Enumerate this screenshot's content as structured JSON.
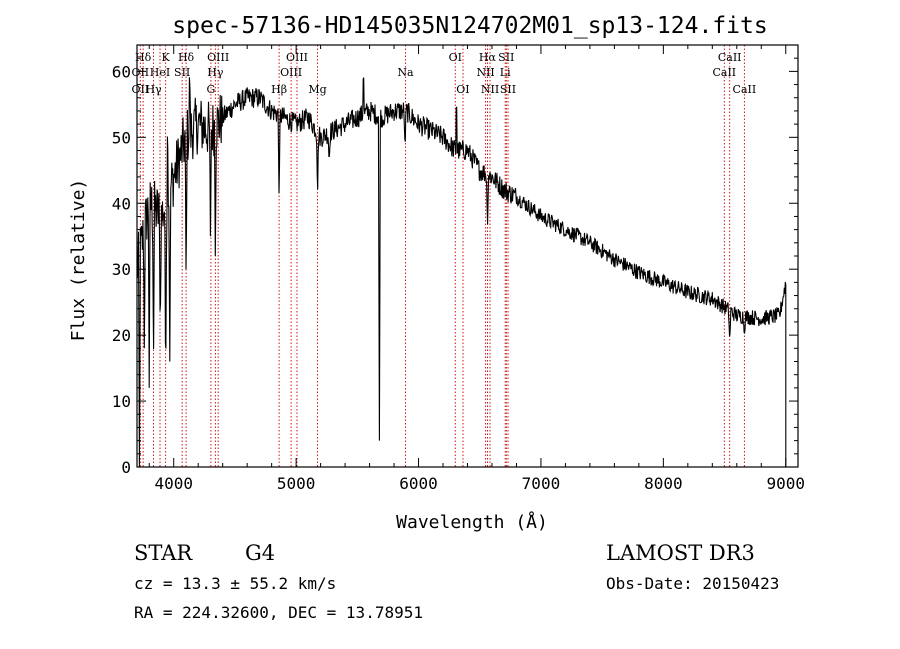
{
  "chart_data": {
    "type": "line",
    "title": "spec-57136-HD145035N124702M01_sp13-124.fits",
    "xlabel": "Wavelength (Å)",
    "ylabel": "Flux (relative)",
    "xlim": [
      3700,
      9100
    ],
    "ylim": [
      0,
      64
    ],
    "xticks": [
      4000,
      5000,
      6000,
      7000,
      8000,
      9000
    ],
    "yticks": [
      0,
      10,
      20,
      30,
      40,
      50,
      60
    ],
    "continuum_anchors": [
      [
        3700,
        30
      ],
      [
        3800,
        40
      ],
      [
        3900,
        38
      ],
      [
        4000,
        44
      ],
      [
        4100,
        50
      ],
      [
        4200,
        52
      ],
      [
        4300,
        51
      ],
      [
        4400,
        53
      ],
      [
        4500,
        55
      ],
      [
        4600,
        56
      ],
      [
        4700,
        56
      ],
      [
        4800,
        54
      ],
      [
        4900,
        53
      ],
      [
        5000,
        52
      ],
      [
        5100,
        53
      ],
      [
        5200,
        50
      ],
      [
        5300,
        51
      ],
      [
        5400,
        52
      ],
      [
        5500,
        53
      ],
      [
        5600,
        54
      ],
      [
        5700,
        53
      ],
      [
        5800,
        54
      ],
      [
        5900,
        54
      ],
      [
        6000,
        52
      ],
      [
        6100,
        51
      ],
      [
        6200,
        50
      ],
      [
        6300,
        48
      ],
      [
        6400,
        48
      ],
      [
        6500,
        45
      ],
      [
        6600,
        44
      ],
      [
        6700,
        42
      ],
      [
        6800,
        41
      ],
      [
        6900,
        39.5
      ],
      [
        7000,
        38
      ],
      [
        7200,
        36
      ],
      [
        7400,
        34
      ],
      [
        7600,
        31.5
      ],
      [
        7800,
        29.5
      ],
      [
        8000,
        28
      ],
      [
        8200,
        26.5
      ],
      [
        8400,
        25.5
      ],
      [
        8600,
        23
      ],
      [
        8800,
        22.5
      ],
      [
        8950,
        23
      ],
      [
        9000,
        28
      ],
      [
        9010,
        0
      ]
    ],
    "absorption_features": [
      [
        3720,
        0
      ],
      [
        3760,
        18
      ],
      [
        3800,
        12
      ],
      [
        3835,
        15
      ],
      [
        3890,
        20
      ],
      [
        3934,
        12
      ],
      [
        3968,
        16
      ],
      [
        4101,
        27
      ],
      [
        4300,
        35
      ],
      [
        4340,
        32
      ],
      [
        4861,
        40
      ],
      [
        5175,
        41
      ],
      [
        5270,
        46
      ],
      [
        5680,
        4
      ],
      [
        5890,
        48
      ],
      [
        6563,
        36
      ],
      [
        8542,
        19
      ],
      [
        8662,
        20
      ]
    ],
    "emission_features": [
      [
        3950,
        54
      ],
      [
        4130,
        62
      ],
      [
        5550,
        62
      ],
      [
        6310,
        58
      ]
    ],
    "lines": [
      {
        "label": "Hδ",
        "x": 3750,
        "row": 0
      },
      {
        "label": "K",
        "x": 3934,
        "row": 0
      },
      {
        "label": "Hδ",
        "x": 4101,
        "row": 0
      },
      {
        "label": "OIII",
        "x": 4363,
        "row": 0
      },
      {
        "label": "OIII",
        "x": 5007,
        "row": 0
      },
      {
        "label": "OI",
        "x": 6300,
        "row": 0
      },
      {
        "label": "Hα",
        "x": 6563,
        "row": 0
      },
      {
        "label": "SII",
        "x": 6717,
        "row": 0
      },
      {
        "label": "CaII",
        "x": 8542,
        "row": 0
      },
      {
        "label": "OII",
        "x": 3727,
        "row": 1
      },
      {
        "label": "HeI",
        "x": 3888,
        "row": 1
      },
      {
        "label": "SII",
        "x": 4069,
        "row": 1
      },
      {
        "label": "Hγ",
        "x": 4340,
        "row": 1
      },
      {
        "label": "OIII",
        "x": 4959,
        "row": 1
      },
      {
        "label": "Na",
        "x": 5893,
        "row": 1
      },
      {
        "label": "NII",
        "x": 6548,
        "row": 1
      },
      {
        "label": "Li",
        "x": 6708,
        "row": 1
      },
      {
        "label": "CaII",
        "x": 8498,
        "row": 1
      },
      {
        "label": "OII",
        "x": 3727,
        "row": 2
      },
      {
        "label": "Hγ",
        "x": 3835,
        "row": 2
      },
      {
        "label": "G",
        "x": 4304,
        "row": 2
      },
      {
        "label": "Hβ",
        "x": 4861,
        "row": 2
      },
      {
        "label": "Mg",
        "x": 5175,
        "row": 2
      },
      {
        "label": "OI",
        "x": 6363,
        "row": 2
      },
      {
        "label": "NII",
        "x": 6584,
        "row": 2
      },
      {
        "label": "SII",
        "x": 6731,
        "row": 2
      },
      {
        "label": "CaII",
        "x": 8662,
        "row": 2
      }
    ],
    "line_color": "#000000",
    "marker_color": "#cc0000"
  },
  "info": {
    "object_class": "STAR",
    "subclass": "G4",
    "survey": "LAMOST DR3",
    "cz": "cz = 13.3 ± 55.2 km/s",
    "obs_date": "Obs-Date: 20150423",
    "radec": "RA = 224.32600, DEC =  13.78951"
  }
}
